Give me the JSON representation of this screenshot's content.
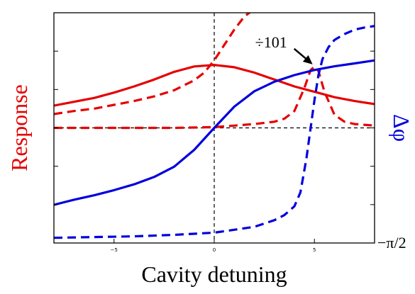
{
  "chart_data": {
    "type": "line",
    "xlabel": "Cavity detuning",
    "ylabel": "Response",
    "y2label": "Δφ",
    "xlim": [
      -8,
      8
    ],
    "ylim": [
      -1.5,
      1.5
    ],
    "y2lim": [
      -1.5708,
      1.5708
    ],
    "x_ticks": [
      -5,
      0,
      5
    ],
    "x_tick_labels": [
      "−5",
      "0",
      "5"
    ],
    "y_ticks": [
      -1.5,
      -1,
      -0.5,
      0,
      0.5,
      1,
      1.5
    ],
    "y2_tick_labels": [
      "−π/2"
    ],
    "reference_lines": {
      "x": 0,
      "y": 0,
      "style": "dashed"
    },
    "grid": false,
    "annotation": {
      "text": "÷101",
      "arrow_to": [
        5.05,
        0.8
      ]
    },
    "colors": {
      "response": "#e60000",
      "phase": "#0000dd"
    },
    "series": [
      {
        "id": "red-solid",
        "axis": "left",
        "style": "solid",
        "color": "#e60000",
        "x": [
          -8,
          -7,
          -6,
          -5,
          -4,
          -3,
          -2,
          -1,
          0,
          1,
          2,
          3,
          4,
          5,
          6,
          7,
          8
        ],
        "y": [
          0.29,
          0.34,
          0.39,
          0.46,
          0.54,
          0.63,
          0.73,
          0.8,
          0.82,
          0.79,
          0.72,
          0.63,
          0.54,
          0.47,
          0.4,
          0.35,
          0.31
        ]
      },
      {
        "id": "red-dashed-wide",
        "axis": "left",
        "style": "dashed",
        "color": "#e60000",
        "x": [
          -8,
          -7,
          -6,
          -5,
          -4,
          -3,
          -2,
          -1,
          -0.5,
          0,
          0.5,
          1,
          1.5,
          2
        ],
        "y": [
          0.18,
          0.22,
          0.25,
          0.3,
          0.35,
          0.41,
          0.49,
          0.62,
          0.72,
          0.88,
          1.08,
          1.28,
          1.45,
          1.55
        ]
      },
      {
        "id": "red-dashed-narrow",
        "axis": "left",
        "style": "dashed",
        "color": "#e60000",
        "x": [
          -8,
          -6,
          -4,
          -2,
          0,
          1,
          2,
          3,
          3.5,
          4,
          4.5,
          4.8,
          5,
          5.2,
          5.5,
          6,
          6.5,
          7,
          8
        ],
        "y": [
          0,
          0,
          0,
          0,
          0.01,
          0.03,
          0.05,
          0.08,
          0.12,
          0.22,
          0.52,
          0.75,
          0.8,
          0.74,
          0.47,
          0.17,
          0.08,
          0.05,
          0.03
        ]
      },
      {
        "id": "blue-solid",
        "axis": "right",
        "style": "solid",
        "color": "#0000dd",
        "x": [
          -8,
          -7,
          -6,
          -5,
          -4,
          -3,
          -2,
          -1,
          0,
          1,
          2,
          3,
          4,
          5,
          6,
          7,
          8
        ],
        "y": [
          -1.05,
          -0.98,
          -0.92,
          -0.85,
          -0.77,
          -0.67,
          -0.53,
          -0.3,
          0,
          0.29,
          0.5,
          0.63,
          0.72,
          0.79,
          0.84,
          0.88,
          0.92
        ]
      },
      {
        "id": "blue-dashed",
        "axis": "right",
        "style": "dashed",
        "color": "#0000dd",
        "x": [
          -8,
          -6,
          -4,
          -2,
          0,
          1,
          2,
          3,
          3.5,
          4,
          4.3,
          4.6,
          4.8,
          5,
          5.2,
          5.4,
          5.7,
          6,
          6.5,
          7,
          7.5,
          8
        ],
        "y": [
          -1.5,
          -1.49,
          -1.48,
          -1.46,
          -1.43,
          -1.39,
          -1.35,
          -1.26,
          -1.19,
          -1.07,
          -0.88,
          -0.42,
          -0.02,
          0.38,
          0.72,
          0.94,
          1.1,
          1.2,
          1.28,
          1.34,
          1.37,
          1.39
        ]
      }
    ]
  }
}
